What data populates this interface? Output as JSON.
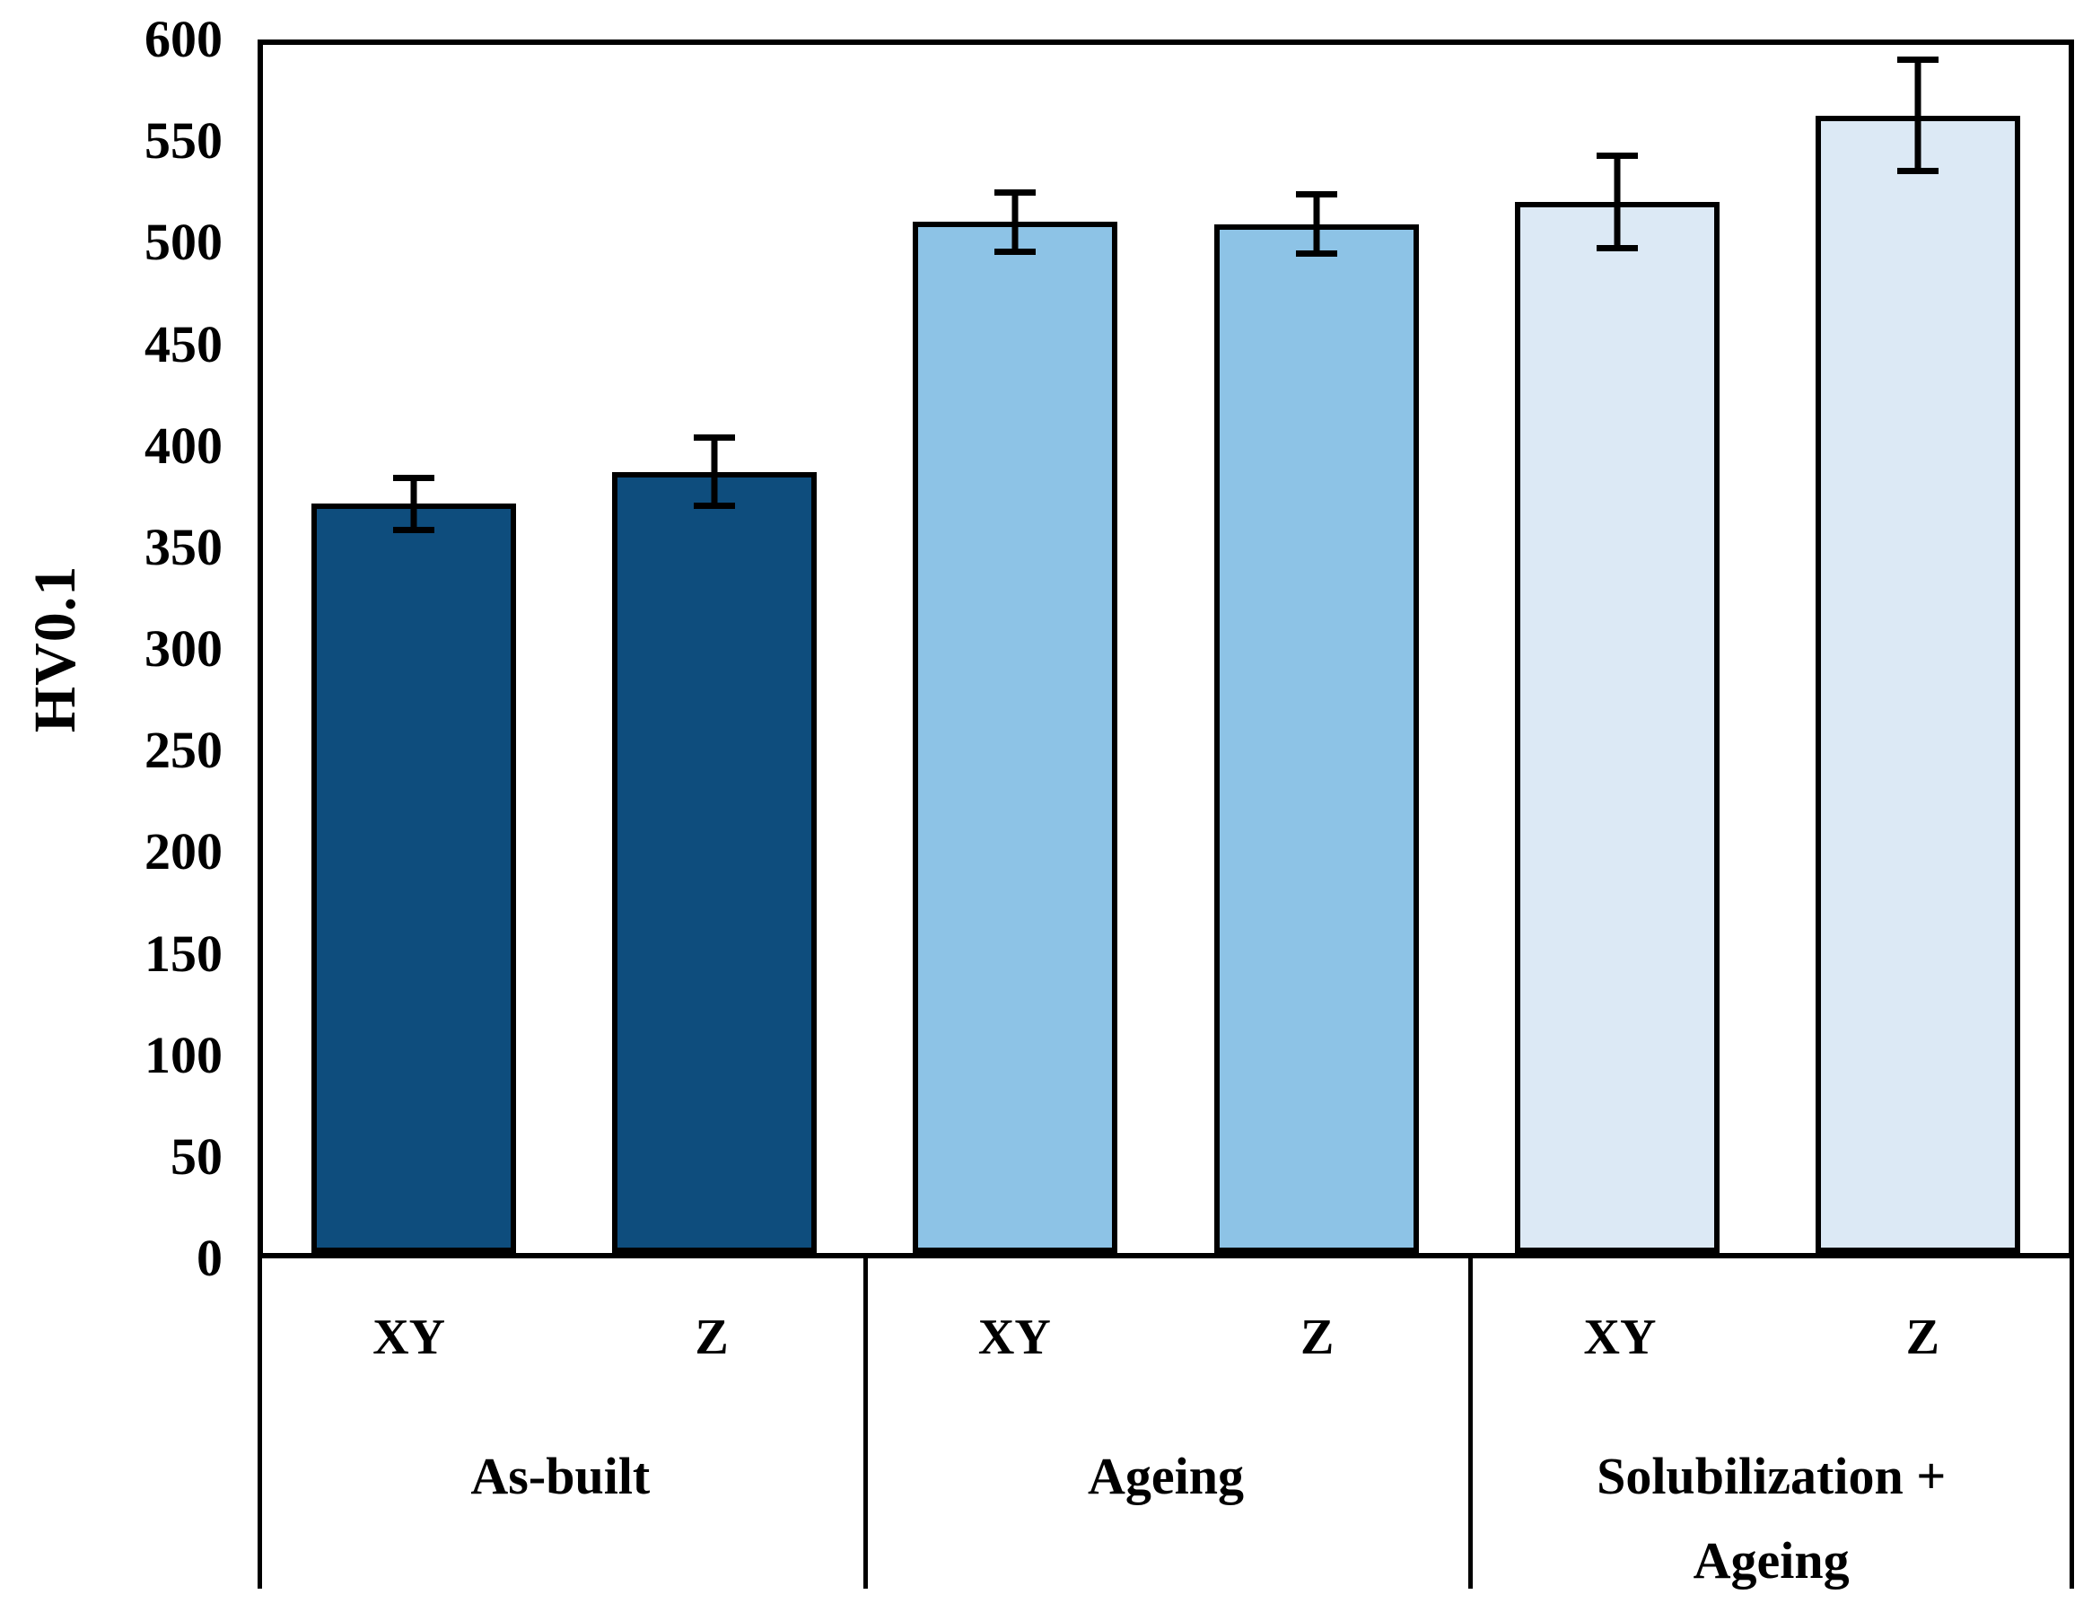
{
  "figure": {
    "background_color": "#ffffff",
    "frame_color": "#000000"
  },
  "chart_data": {
    "type": "bar",
    "title": "",
    "xlabel": "",
    "ylabel": "HV0.1",
    "ylim": [
      0,
      600
    ],
    "ytick_step": 50,
    "yticks": [
      0,
      50,
      100,
      150,
      200,
      250,
      300,
      350,
      400,
      450,
      500,
      550,
      600
    ],
    "grid": false,
    "legend": "none",
    "bar_border_color": "#000000",
    "error_bar_color": "#000000",
    "groups": [
      {
        "label": "As-built",
        "color": "#0e4d7d",
        "bars": [
          {
            "category": "XY",
            "value": 372,
            "error": 13
          },
          {
            "category": "Z",
            "value": 388,
            "error": 17
          }
        ]
      },
      {
        "label": "Ageing",
        "color": "#8dc3e6",
        "bars": [
          {
            "category": "XY",
            "value": 512,
            "error": 15
          },
          {
            "category": "Z",
            "value": 511,
            "error": 15
          }
        ]
      },
      {
        "label": "Solubilization +\nAgeing",
        "color": "#dce9f5",
        "bars": [
          {
            "category": "XY",
            "value": 522,
            "error": 23
          },
          {
            "category": "Z",
            "value": 565,
            "error": 28
          }
        ]
      }
    ]
  }
}
